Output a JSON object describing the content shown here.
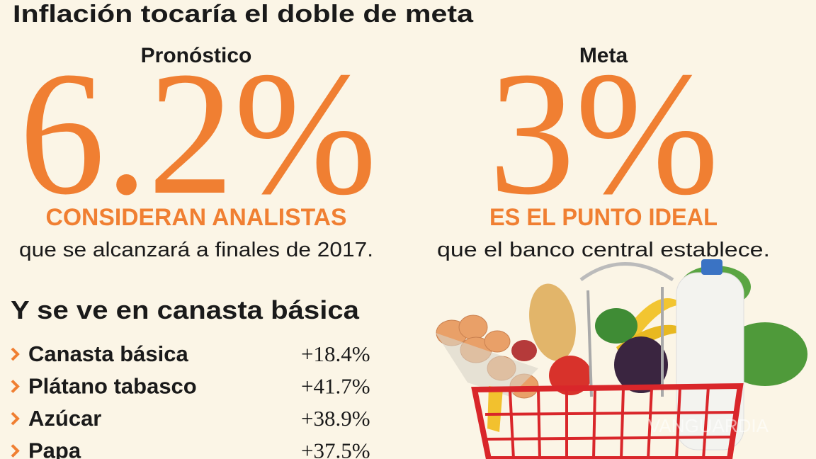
{
  "header": {
    "title": "Inflación tocaría el doble de meta"
  },
  "stats": [
    {
      "label": "Pronóstico",
      "value": "6.2%",
      "headline": "CONSIDERAN ANALISTAS",
      "text": "que se alcanzará a finales de 2017."
    },
    {
      "label": "Meta",
      "value": "3%",
      "headline": "ES EL PUNTO IDEAL",
      "text": "que el banco central establece."
    }
  ],
  "list": {
    "title": "Y se ve en canasta básica",
    "items": [
      {
        "name": "Canasta básica",
        "value": "+18.4%"
      },
      {
        "name": "Plátano tabasco",
        "value": "+41.7%"
      },
      {
        "name": "Azúcar",
        "value": "+38.9%"
      },
      {
        "name": "Papa",
        "value": "+37.5%"
      }
    ]
  },
  "watermark": "VANGUARDIA"
}
